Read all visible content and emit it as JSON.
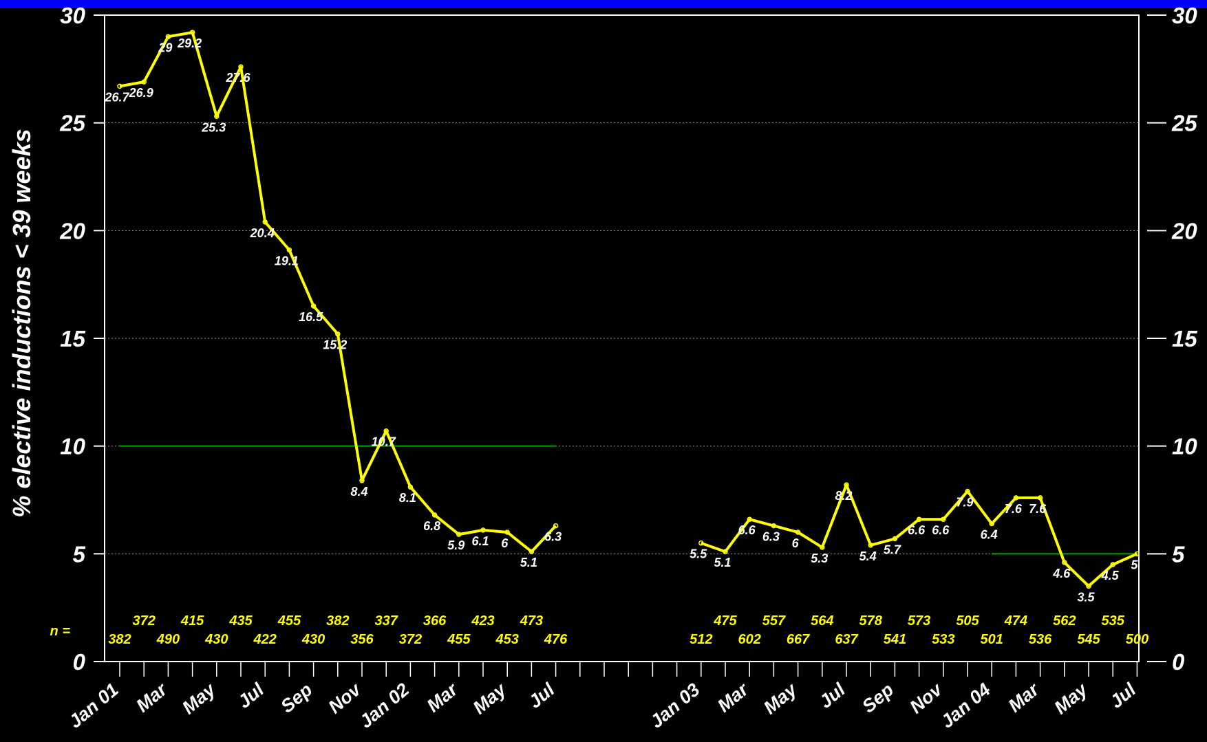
{
  "colors": {
    "background": "#000000",
    "top_bar": "#0000ff",
    "series_line": "#ffff00",
    "target_line": "#00aa00",
    "text": "#ffffff",
    "n_text": "#ffff00"
  },
  "chart_data": {
    "type": "line",
    "ylabel": "% elective inductions < 39 weeks",
    "ylim": [
      0,
      30
    ],
    "yticks": [
      "0",
      "5",
      "10",
      "15",
      "20",
      "25",
      "30"
    ],
    "right_axis_ticks": [
      "0",
      "5",
      "10",
      "15",
      "20",
      "25",
      "30"
    ],
    "grid": "horizontal dotted",
    "x_months": [
      "Jan 01",
      "Feb 01",
      "Mar 01",
      "Apr 01",
      "May 01",
      "Jun 01",
      "Jul 01",
      "Aug 01",
      "Sep 01",
      "Oct 01",
      "Nov 01",
      "Dec 01",
      "Jan 02",
      "Feb 02",
      "Mar 02",
      "Apr 02",
      "May 02",
      "Jun 02",
      "Jul 02",
      "Aug 02",
      "Sep 02",
      "Oct 02",
      "Nov 02",
      "Dec 02",
      "Jan 03",
      "Feb 03",
      "Mar 03",
      "Apr 03",
      "May 03",
      "Jun 03",
      "Jul 03",
      "Aug 03",
      "Sep 03",
      "Oct 03",
      "Nov 03",
      "Dec 03",
      "Jan 04",
      "Feb 04",
      "Mar 04",
      "Apr 04",
      "May 04",
      "Jun 04",
      "Jul 04"
    ],
    "x_tick_labels": [
      {
        "month": "Jan 01",
        "text": "Jan 01"
      },
      {
        "month": "Mar 01",
        "text": "Mar"
      },
      {
        "month": "May 01",
        "text": "May"
      },
      {
        "month": "Jul 01",
        "text": "Jul"
      },
      {
        "month": "Sep 01",
        "text": "Sep"
      },
      {
        "month": "Nov 01",
        "text": "Nov"
      },
      {
        "month": "Jan 02",
        "text": "Jan 02"
      },
      {
        "month": "Mar 02",
        "text": "Mar"
      },
      {
        "month": "May 02",
        "text": "May"
      },
      {
        "month": "Jul 02",
        "text": "Jul"
      },
      {
        "month": "Jan 03",
        "text": "Jan 03"
      },
      {
        "month": "Mar 03",
        "text": "Mar"
      },
      {
        "month": "May 03",
        "text": "May"
      },
      {
        "month": "Jul 03",
        "text": "Jul"
      },
      {
        "month": "Sep 03",
        "text": "Sep"
      },
      {
        "month": "Nov 03",
        "text": "Nov"
      },
      {
        "month": "Jan 04",
        "text": "Jan 04"
      },
      {
        "month": "Mar 04",
        "text": "Mar"
      },
      {
        "month": "May 04",
        "text": "May"
      },
      {
        "month": "Jul 04",
        "text": "Jul"
      }
    ],
    "series": [
      {
        "points": [
          {
            "x": "Jan 01",
            "y": 26.7,
            "label": "26.7"
          },
          {
            "x": "Feb 01",
            "y": 26.9,
            "label": "26.9"
          },
          {
            "x": "Mar 01",
            "y": 29.0,
            "label": "29"
          },
          {
            "x": "Apr 01",
            "y": 29.2,
            "label": "29.2"
          },
          {
            "x": "May 01",
            "y": 25.3,
            "label": "25.3"
          },
          {
            "x": "Jun 01",
            "y": 27.6,
            "label": "27.6"
          },
          {
            "x": "Jul 01",
            "y": 20.4,
            "label": "20.4"
          },
          {
            "x": "Aug 01",
            "y": 19.1,
            "label": "19.1"
          },
          {
            "x": "Sep 01",
            "y": 16.5,
            "label": "16.5"
          },
          {
            "x": "Oct 01",
            "y": 15.2,
            "label": "15.2"
          },
          {
            "x": "Nov 01",
            "y": 8.4,
            "label": "8.4"
          },
          {
            "x": "Dec 01",
            "y": 10.7,
            "label": "10.7"
          },
          {
            "x": "Jan 02",
            "y": 8.1,
            "label": "8.1"
          },
          {
            "x": "Feb 02",
            "y": 6.8,
            "label": "6.8"
          },
          {
            "x": "Mar 02",
            "y": 5.9,
            "label": "5.9"
          },
          {
            "x": "Apr 02",
            "y": 6.1,
            "label": "6.1"
          },
          {
            "x": "May 02",
            "y": 6.0,
            "label": "6"
          },
          {
            "x": "Jun 02",
            "y": 5.1,
            "label": "5.1"
          },
          {
            "x": "Jul 02",
            "y": 6.3,
            "label": "6.3"
          }
        ]
      },
      {
        "points": [
          {
            "x": "Jan 03",
            "y": 5.5,
            "label": "5.5"
          },
          {
            "x": "Feb 03",
            "y": 5.1,
            "label": "5.1"
          },
          {
            "x": "Mar 03",
            "y": 6.6,
            "label": "6.6"
          },
          {
            "x": "Apr 03",
            "y": 6.3,
            "label": "6.3"
          },
          {
            "x": "May 03",
            "y": 6.0,
            "label": "6"
          },
          {
            "x": "Jun 03",
            "y": 5.3,
            "label": "5.3"
          },
          {
            "x": "Jul 03",
            "y": 8.2,
            "label": "8.2"
          },
          {
            "x": "Aug 03",
            "y": 5.4,
            "label": "5.4"
          },
          {
            "x": "Sep 03",
            "y": 5.7,
            "label": "5.7"
          },
          {
            "x": "Oct 03",
            "y": 6.6,
            "label": "6.6"
          },
          {
            "x": "Nov 03",
            "y": 6.6,
            "label": "6.6"
          },
          {
            "x": "Dec 03",
            "y": 7.9,
            "label": "7.9"
          },
          {
            "x": "Jan 04",
            "y": 6.4,
            "label": "6.4"
          },
          {
            "x": "Feb 04",
            "y": 7.6,
            "label": "7.6"
          },
          {
            "x": "Mar 04",
            "y": 7.6,
            "label": "7.6"
          },
          {
            "x": "Apr 04",
            "y": 4.6,
            "label": "4.6"
          },
          {
            "x": "May 04",
            "y": 3.5,
            "label": "3.5"
          },
          {
            "x": "Jun 04",
            "y": 4.5,
            "label": "4.5"
          },
          {
            "x": "Jul 04",
            "y": 5.0,
            "label": "5"
          }
        ]
      }
    ],
    "target_lines": [
      {
        "y": 10,
        "from": "Jan 01",
        "to": "Jul 02"
      },
      {
        "y": 5,
        "from": "Jan 04",
        "to": "Jul 04"
      }
    ],
    "n_caption": "n =",
    "n_values": [
      {
        "x": "Jan 01",
        "n": "382"
      },
      {
        "x": "Feb 01",
        "n": "372"
      },
      {
        "x": "Mar 01",
        "n": "490"
      },
      {
        "x": "Apr 01",
        "n": "415"
      },
      {
        "x": "May 01",
        "n": "430"
      },
      {
        "x": "Jun 01",
        "n": "435"
      },
      {
        "x": "Jul 01",
        "n": "422"
      },
      {
        "x": "Aug 01",
        "n": "455"
      },
      {
        "x": "Sep 01",
        "n": "430"
      },
      {
        "x": "Oct 01",
        "n": "382"
      },
      {
        "x": "Nov 01",
        "n": "356"
      },
      {
        "x": "Dec 01",
        "n": "337"
      },
      {
        "x": "Jan 02",
        "n": "372"
      },
      {
        "x": "Feb 02",
        "n": "366"
      },
      {
        "x": "Mar 02",
        "n": "455"
      },
      {
        "x": "Apr 02",
        "n": "423"
      },
      {
        "x": "May 02",
        "n": "453"
      },
      {
        "x": "Jun 02",
        "n": "473"
      },
      {
        "x": "Jul 02",
        "n": "476"
      },
      {
        "x": "Jan 03",
        "n": "512"
      },
      {
        "x": "Feb 03",
        "n": "475"
      },
      {
        "x": "Mar 03",
        "n": "602"
      },
      {
        "x": "Apr 03",
        "n": "557"
      },
      {
        "x": "May 03",
        "n": "667"
      },
      {
        "x": "Jun 03",
        "n": "564"
      },
      {
        "x": "Jul 03",
        "n": "637"
      },
      {
        "x": "Aug 03",
        "n": "578"
      },
      {
        "x": "Sep 03",
        "n": "541"
      },
      {
        "x": "Oct 03",
        "n": "573"
      },
      {
        "x": "Nov 03",
        "n": "533"
      },
      {
        "x": "Dec 03",
        "n": "505"
      },
      {
        "x": "Jan 04",
        "n": "501"
      },
      {
        "x": "Feb 04",
        "n": "474"
      },
      {
        "x": "Mar 04",
        "n": "536"
      },
      {
        "x": "Apr 04",
        "n": "562"
      },
      {
        "x": "May 04",
        "n": "545"
      },
      {
        "x": "Jun 04",
        "n": "535"
      },
      {
        "x": "Jul 04",
        "n": "500"
      }
    ]
  }
}
